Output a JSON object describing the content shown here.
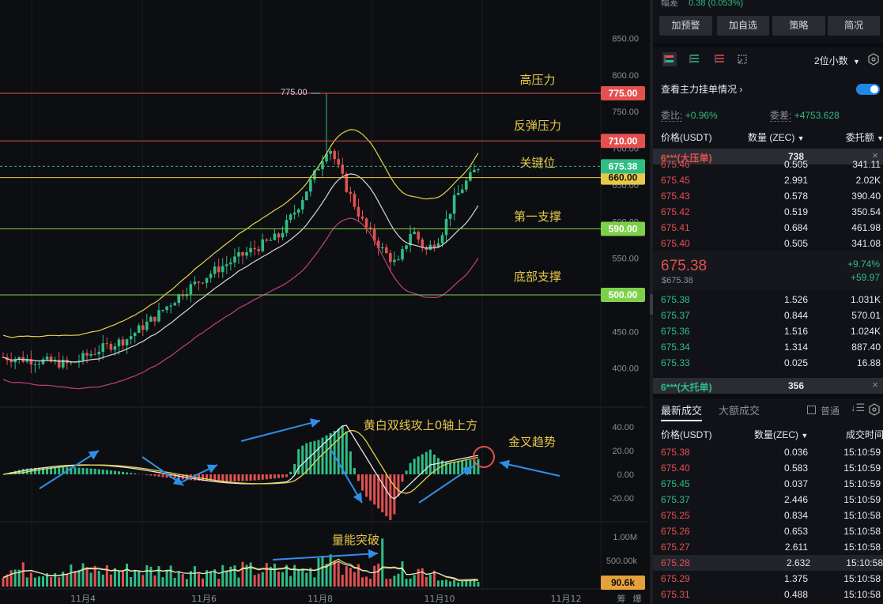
{
  "chart": {
    "price_levels": [
      {
        "label": "775.00",
        "value": 775,
        "color": "#e3504f",
        "name": "高压力"
      },
      {
        "label": "710.00",
        "value": 710,
        "color": "#e3504f",
        "name": "反弹压力"
      },
      {
        "label": "660.00",
        "value": 660,
        "color": "#e6c84a",
        "name": "关键位"
      },
      {
        "label": "590.00",
        "value": 590,
        "color": "#7ed04a",
        "name": "第一支撑"
      },
      {
        "label": "500.00",
        "value": 500,
        "color": "#7ed04a",
        "name": "底部支撑"
      }
    ],
    "current_price_label": "675.38",
    "peak_label": "775.00",
    "y_ticks": [
      "850.00",
      "800.00",
      "750.00",
      "700.00",
      "650.00",
      "600.00",
      "550.00",
      "450.00",
      "400.00"
    ],
    "macd_ticks": [
      "40.00",
      "20.00",
      "0.00",
      "-20.00"
    ],
    "volume_ticks": [
      "1.00M",
      "500.00k"
    ],
    "volume_current": "90.6k",
    "volume_badge_partial": "90.6k",
    "x_labels": [
      "11月4",
      "11月6",
      "11月8",
      "11月10",
      "11月12"
    ],
    "annotations": {
      "macd_note": "黄白双线攻上0轴上方",
      "golden_cross": "金叉趋势",
      "volume_note": "量能突破"
    },
    "corner_labels": [
      "筹",
      "爆"
    ]
  },
  "side": {
    "top_partial": {
      "label": "幅差",
      "value": "0.38 (0.053%)"
    },
    "buttons": [
      "加预警",
      "加自选",
      "策略",
      "简况"
    ],
    "decimals": "2位小数",
    "main_orders": "查看主力挂单情况",
    "commit_ratio": {
      "label": "委比:",
      "value": "+0.96%"
    },
    "commit_diff": {
      "label": "委差:",
      "value": "+4753.628"
    },
    "book_headers": {
      "price": "价格(USDT)",
      "qty": "数量 (ZEC)",
      "amount": "委托额"
    },
    "ask_big": {
      "label": "6***(大压单)",
      "value": "738"
    },
    "asks": [
      {
        "price": "675.46",
        "qty": "0.505",
        "amount": "341.11"
      },
      {
        "price": "675.45",
        "qty": "2.991",
        "amount": "2.02K"
      },
      {
        "price": "675.43",
        "qty": "0.578",
        "amount": "390.40"
      },
      {
        "price": "675.42",
        "qty": "0.519",
        "amount": "350.54"
      },
      {
        "price": "675.41",
        "qty": "0.684",
        "amount": "461.98"
      },
      {
        "price": "675.40",
        "qty": "0.505",
        "amount": "341.08"
      }
    ],
    "last": {
      "price": "675.38",
      "usd": "$675.38",
      "pct": "+9.74%",
      "chg": "+59.97"
    },
    "bids": [
      {
        "price": "675.38",
        "qty": "1.526",
        "amount": "1.031K"
      },
      {
        "price": "675.37",
        "qty": "0.844",
        "amount": "570.01"
      },
      {
        "price": "675.36",
        "qty": "1.516",
        "amount": "1.024K"
      },
      {
        "price": "675.34",
        "qty": "1.314",
        "amount": "887.40"
      },
      {
        "price": "675.33",
        "qty": "0.025",
        "amount": "16.88"
      }
    ],
    "bid_big": {
      "label": "6***(大托单)",
      "value": "356"
    },
    "trades_tabs": {
      "latest": "最新成交",
      "large": "大额成交",
      "normal": "普通"
    },
    "trade_headers": {
      "price": "价格(USDT)",
      "qty": "数量(ZEC)",
      "time": "成交时间"
    },
    "trades": [
      {
        "price": "675.38",
        "qty": "0.036",
        "time": "15:10:59",
        "side": "sell"
      },
      {
        "price": "675.40",
        "qty": "0.583",
        "time": "15:10:59",
        "side": "sell"
      },
      {
        "price": "675.45",
        "qty": "0.037",
        "time": "15:10:59",
        "side": "buy"
      },
      {
        "price": "675.37",
        "qty": "2.446",
        "time": "15:10:59",
        "side": "buy"
      },
      {
        "price": "675.25",
        "qty": "0.834",
        "time": "15:10:58",
        "side": "sell"
      },
      {
        "price": "675.26",
        "qty": "0.653",
        "time": "15:10:58",
        "side": "sell"
      },
      {
        "price": "675.27",
        "qty": "2.611",
        "time": "15:10:58",
        "side": "sell"
      },
      {
        "price": "675.28",
        "qty": "2.632",
        "time": "15:10:58",
        "side": "sell"
      },
      {
        "price": "675.29",
        "qty": "1.375",
        "time": "15:10:58",
        "side": "sell"
      },
      {
        "price": "675.31",
        "qty": "0.488",
        "time": "15:10:58",
        "side": "sell"
      }
    ]
  }
}
